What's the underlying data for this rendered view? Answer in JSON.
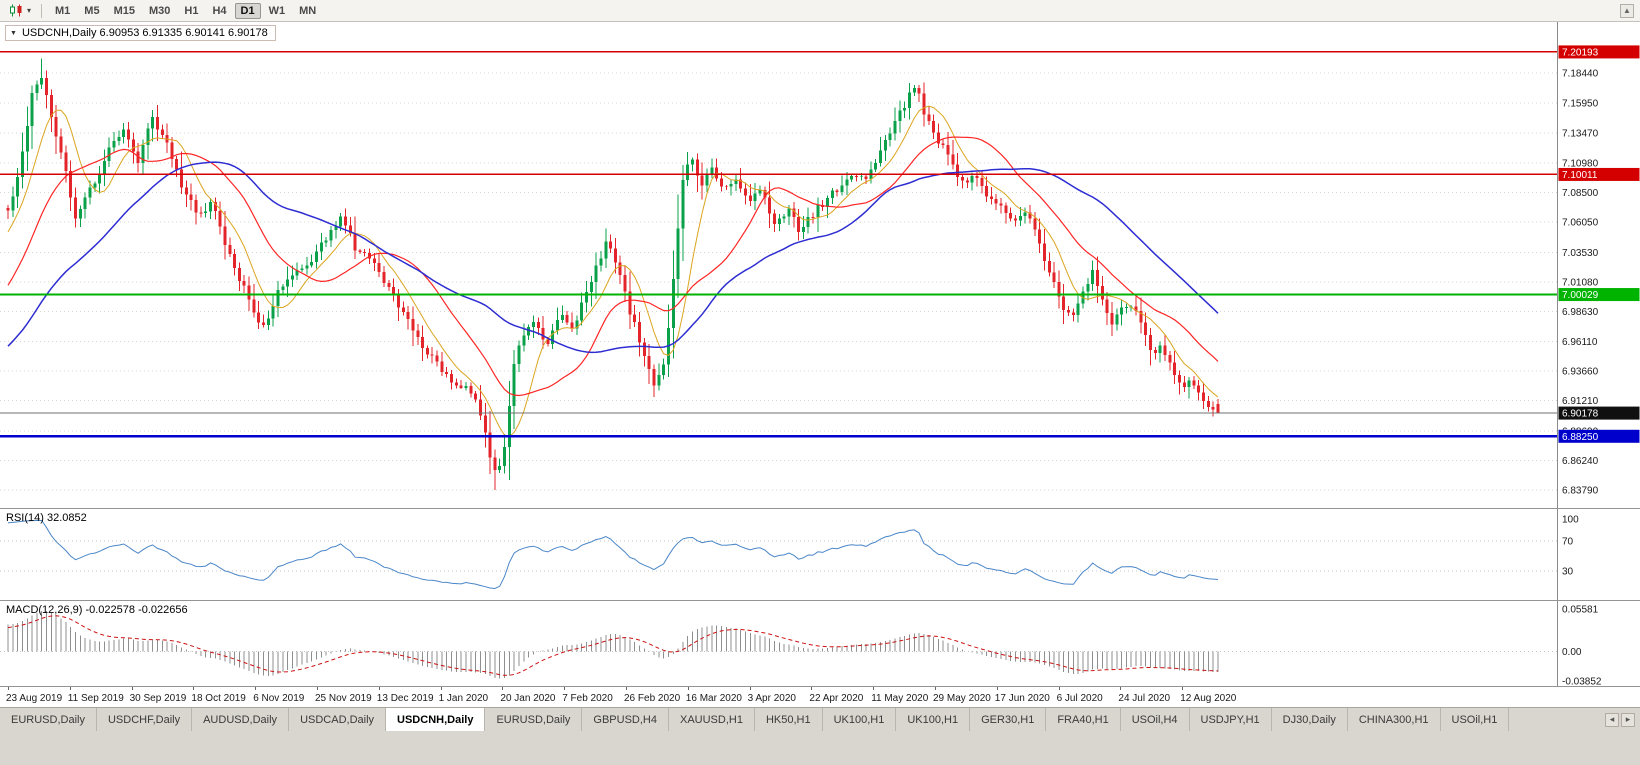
{
  "toolbar": {
    "timeframes": [
      {
        "label": "M1",
        "active": false
      },
      {
        "label": "M5",
        "active": false
      },
      {
        "label": "M15",
        "active": false
      },
      {
        "label": "M30",
        "active": false
      },
      {
        "label": "H1",
        "active": false
      },
      {
        "label": "H4",
        "active": false
      },
      {
        "label": "D1",
        "active": true
      },
      {
        "label": "W1",
        "active": false
      },
      {
        "label": "MN",
        "active": false
      }
    ]
  },
  "chart": {
    "title_text": "USDCNH,Daily 6.90953 6.91335 6.90141 6.90178"
  },
  "rsi_panel": {
    "label_text": "RSI(14) 32.0852"
  },
  "macd_panel": {
    "label_text": "MACD(12,26,9) -0.022578 -0.022656"
  },
  "tabs": [
    {
      "label": "EURUSD,Daily",
      "active": false
    },
    {
      "label": "USDCHF,Daily",
      "active": false
    },
    {
      "label": "AUDUSD,Daily",
      "active": false
    },
    {
      "label": "USDCAD,Daily",
      "active": false
    },
    {
      "label": "USDCNH,Daily",
      "active": true
    },
    {
      "label": "EURUSD,Daily",
      "active": false
    },
    {
      "label": "GBPUSD,H4",
      "active": false
    },
    {
      "label": "XAUUSD,H1",
      "active": false
    },
    {
      "label": "HK50,H1",
      "active": false
    },
    {
      "label": "UK100,H1",
      "active": false
    },
    {
      "label": "UK100,H1",
      "active": false
    },
    {
      "label": "GER30,H1",
      "active": false
    },
    {
      "label": "FRA40,H1",
      "active": false
    },
    {
      "label": "USOil,H4",
      "active": false
    },
    {
      "label": "USDJPY,H1",
      "active": false
    },
    {
      "label": "DJ30,Daily",
      "active": false
    },
    {
      "label": "CHINA300,H1",
      "active": false
    },
    {
      "label": "USOil,H1",
      "active": false
    }
  ],
  "chart_data": {
    "type": "candlestick",
    "symbol": "USDCNH",
    "timeframe": "Daily",
    "ohlc_display": {
      "open": 6.90953,
      "high": 6.91335,
      "low": 6.90141,
      "close": 6.90178
    },
    "ylim": [
      6.8229,
      7.2268
    ],
    "price_ticks": [
      7.1844,
      7.1595,
      7.1347,
      7.1098,
      7.085,
      7.0605,
      7.0353,
      7.0108,
      6.9863,
      6.9611,
      6.9366,
      6.9121,
      6.8869,
      6.8624,
      6.8379
    ],
    "price_tick_labels": [
      "7.18440",
      "7.15950",
      "7.13470",
      "7.10980",
      "7.08500",
      "7.06050",
      "7.03530",
      "7.01080",
      "6.98630",
      "6.96110",
      "6.93660",
      "6.91210",
      "6.88690",
      "6.86240",
      "6.83790"
    ],
    "x_labels": [
      "23 Aug 2019",
      "11 Sep 2019",
      "30 Sep 2019",
      "18 Oct 2019",
      "6 Nov 2019",
      "25 Nov 2019",
      "13 Dec 2019",
      "1 Jan 2020",
      "20 Jan 2020",
      "7 Feb 2020",
      "26 Feb 2020",
      "16 Mar 2020",
      "3 Apr 2020",
      "22 Apr 2020",
      "11 May 2020",
      "29 May 2020",
      "17 Jun 2020",
      "6 Jul 2020",
      "24 Jul 2020",
      "12 Aug 2020"
    ],
    "key_levels": [
      {
        "price": 7.20193,
        "label": "7.20193",
        "color": "#d40000",
        "width": 1.4
      },
      {
        "price": 7.10011,
        "label": "7.10011",
        "color": "#d40000",
        "width": 1.4
      },
      {
        "price": 7.00029,
        "label": "7.00029",
        "color": "#00b300",
        "width": 1.8
      },
      {
        "price": 6.8825,
        "label": "6.88250",
        "color": "#0000cd",
        "width": 2.2
      }
    ],
    "current_price": {
      "price": 6.90178,
      "label": "6.90178",
      "color": "#101010"
    },
    "extremes": {
      "high": 7.1965,
      "low": 6.8379
    },
    "candle_count": 252,
    "colors": {
      "up": "#0ba14a",
      "down": "#e3242b",
      "grid": "#d6d6d6",
      "macd_hist": "#8f8f8f",
      "macd_signal": "#cc1111",
      "current_line": "#707070"
    },
    "indicators": {
      "ma": [
        {
          "period": 8,
          "color": "#dba520",
          "width": 1
        },
        {
          "period": 21,
          "color": "#ff2525",
          "width": 1.2
        },
        {
          "period": 45,
          "color": "#2d2dd2",
          "width": 1.5
        }
      ],
      "rsi": {
        "period": 14,
        "value": 32.0852,
        "levels": [
          70,
          30
        ],
        "axis_labels": [
          "100",
          "70",
          "30"
        ],
        "color": "#4a86c8"
      },
      "macd": {
        "fast": 12,
        "slow": 26,
        "signal": 9,
        "macd_value": -0.022578,
        "signal_value": -0.022656,
        "range": [
          -0.03852,
          0.05581
        ],
        "axis_labels": [
          "0.05581",
          "0.00",
          "-0.03852"
        ]
      }
    },
    "price_path": [
      [
        0.002,
        7.07
      ],
      [
        0.01,
        7.11
      ],
      [
        0.02,
        7.165
      ],
      [
        0.026,
        7.185
      ],
      [
        0.035,
        7.152
      ],
      [
        0.045,
        7.115
      ],
      [
        0.056,
        7.065
      ],
      [
        0.072,
        7.095
      ],
      [
        0.086,
        7.125
      ],
      [
        0.097,
        7.136
      ],
      [
        0.107,
        7.11
      ],
      [
        0.119,
        7.147
      ],
      [
        0.13,
        7.128
      ],
      [
        0.144,
        7.09
      ],
      [
        0.157,
        7.066
      ],
      [
        0.169,
        7.076
      ],
      [
        0.18,
        7.04
      ],
      [
        0.192,
        7.012
      ],
      [
        0.205,
        6.982
      ],
      [
        0.212,
        6.972
      ],
      [
        0.223,
        7.002
      ],
      [
        0.237,
        7.018
      ],
      [
        0.251,
        7.028
      ],
      [
        0.266,
        7.052
      ],
      [
        0.276,
        7.066
      ],
      [
        0.288,
        7.036
      ],
      [
        0.301,
        7.03
      ],
      [
        0.314,
        7.006
      ],
      [
        0.327,
        6.985
      ],
      [
        0.34,
        6.962
      ],
      [
        0.354,
        6.944
      ],
      [
        0.367,
        6.928
      ],
      [
        0.38,
        6.921
      ],
      [
        0.39,
        6.905
      ],
      [
        0.398,
        6.866
      ],
      [
        0.404,
        6.846
      ],
      [
        0.411,
        6.878
      ],
      [
        0.417,
        6.934
      ],
      [
        0.425,
        6.968
      ],
      [
        0.436,
        6.976
      ],
      [
        0.446,
        6.958
      ],
      [
        0.456,
        6.986
      ],
      [
        0.466,
        6.972
      ],
      [
        0.477,
        6.998
      ],
      [
        0.488,
        7.028
      ],
      [
        0.496,
        7.047
      ],
      [
        0.504,
        7.02
      ],
      [
        0.514,
        6.986
      ],
      [
        0.524,
        6.956
      ],
      [
        0.534,
        6.925
      ],
      [
        0.542,
        6.94
      ],
      [
        0.55,
        7.012
      ],
      [
        0.557,
        7.096
      ],
      [
        0.564,
        7.118
      ],
      [
        0.572,
        7.088
      ],
      [
        0.582,
        7.106
      ],
      [
        0.592,
        7.086
      ],
      [
        0.602,
        7.098
      ],
      [
        0.612,
        7.078
      ],
      [
        0.623,
        7.088
      ],
      [
        0.634,
        7.058
      ],
      [
        0.645,
        7.072
      ],
      [
        0.655,
        7.052
      ],
      [
        0.664,
        7.066
      ],
      [
        0.675,
        7.078
      ],
      [
        0.686,
        7.088
      ],
      [
        0.698,
        7.102
      ],
      [
        0.708,
        7.095
      ],
      [
        0.719,
        7.116
      ],
      [
        0.731,
        7.138
      ],
      [
        0.741,
        7.158
      ],
      [
        0.75,
        7.176
      ],
      [
        0.758,
        7.146
      ],
      [
        0.769,
        7.128
      ],
      [
        0.779,
        7.112
      ],
      [
        0.788,
        7.092
      ],
      [
        0.799,
        7.098
      ],
      [
        0.81,
        7.082
      ],
      [
        0.82,
        7.074
      ],
      [
        0.83,
        7.062
      ],
      [
        0.841,
        7.072
      ],
      [
        0.851,
        7.048
      ],
      [
        0.861,
        7.018
      ],
      [
        0.871,
        6.992
      ],
      [
        0.879,
        6.978
      ],
      [
        0.888,
        7.002
      ],
      [
        0.896,
        7.02
      ],
      [
        0.904,
        6.996
      ],
      [
        0.912,
        6.978
      ],
      [
        0.921,
        6.988
      ],
      [
        0.929,
        6.992
      ],
      [
        0.937,
        6.972
      ],
      [
        0.945,
        6.952
      ],
      [
        0.954,
        6.958
      ],
      [
        0.962,
        6.938
      ],
      [
        0.97,
        6.922
      ],
      [
        0.978,
        6.93
      ],
      [
        0.985,
        6.916
      ],
      [
        0.992,
        6.908
      ],
      [
        1.0,
        6.902
      ]
    ]
  }
}
